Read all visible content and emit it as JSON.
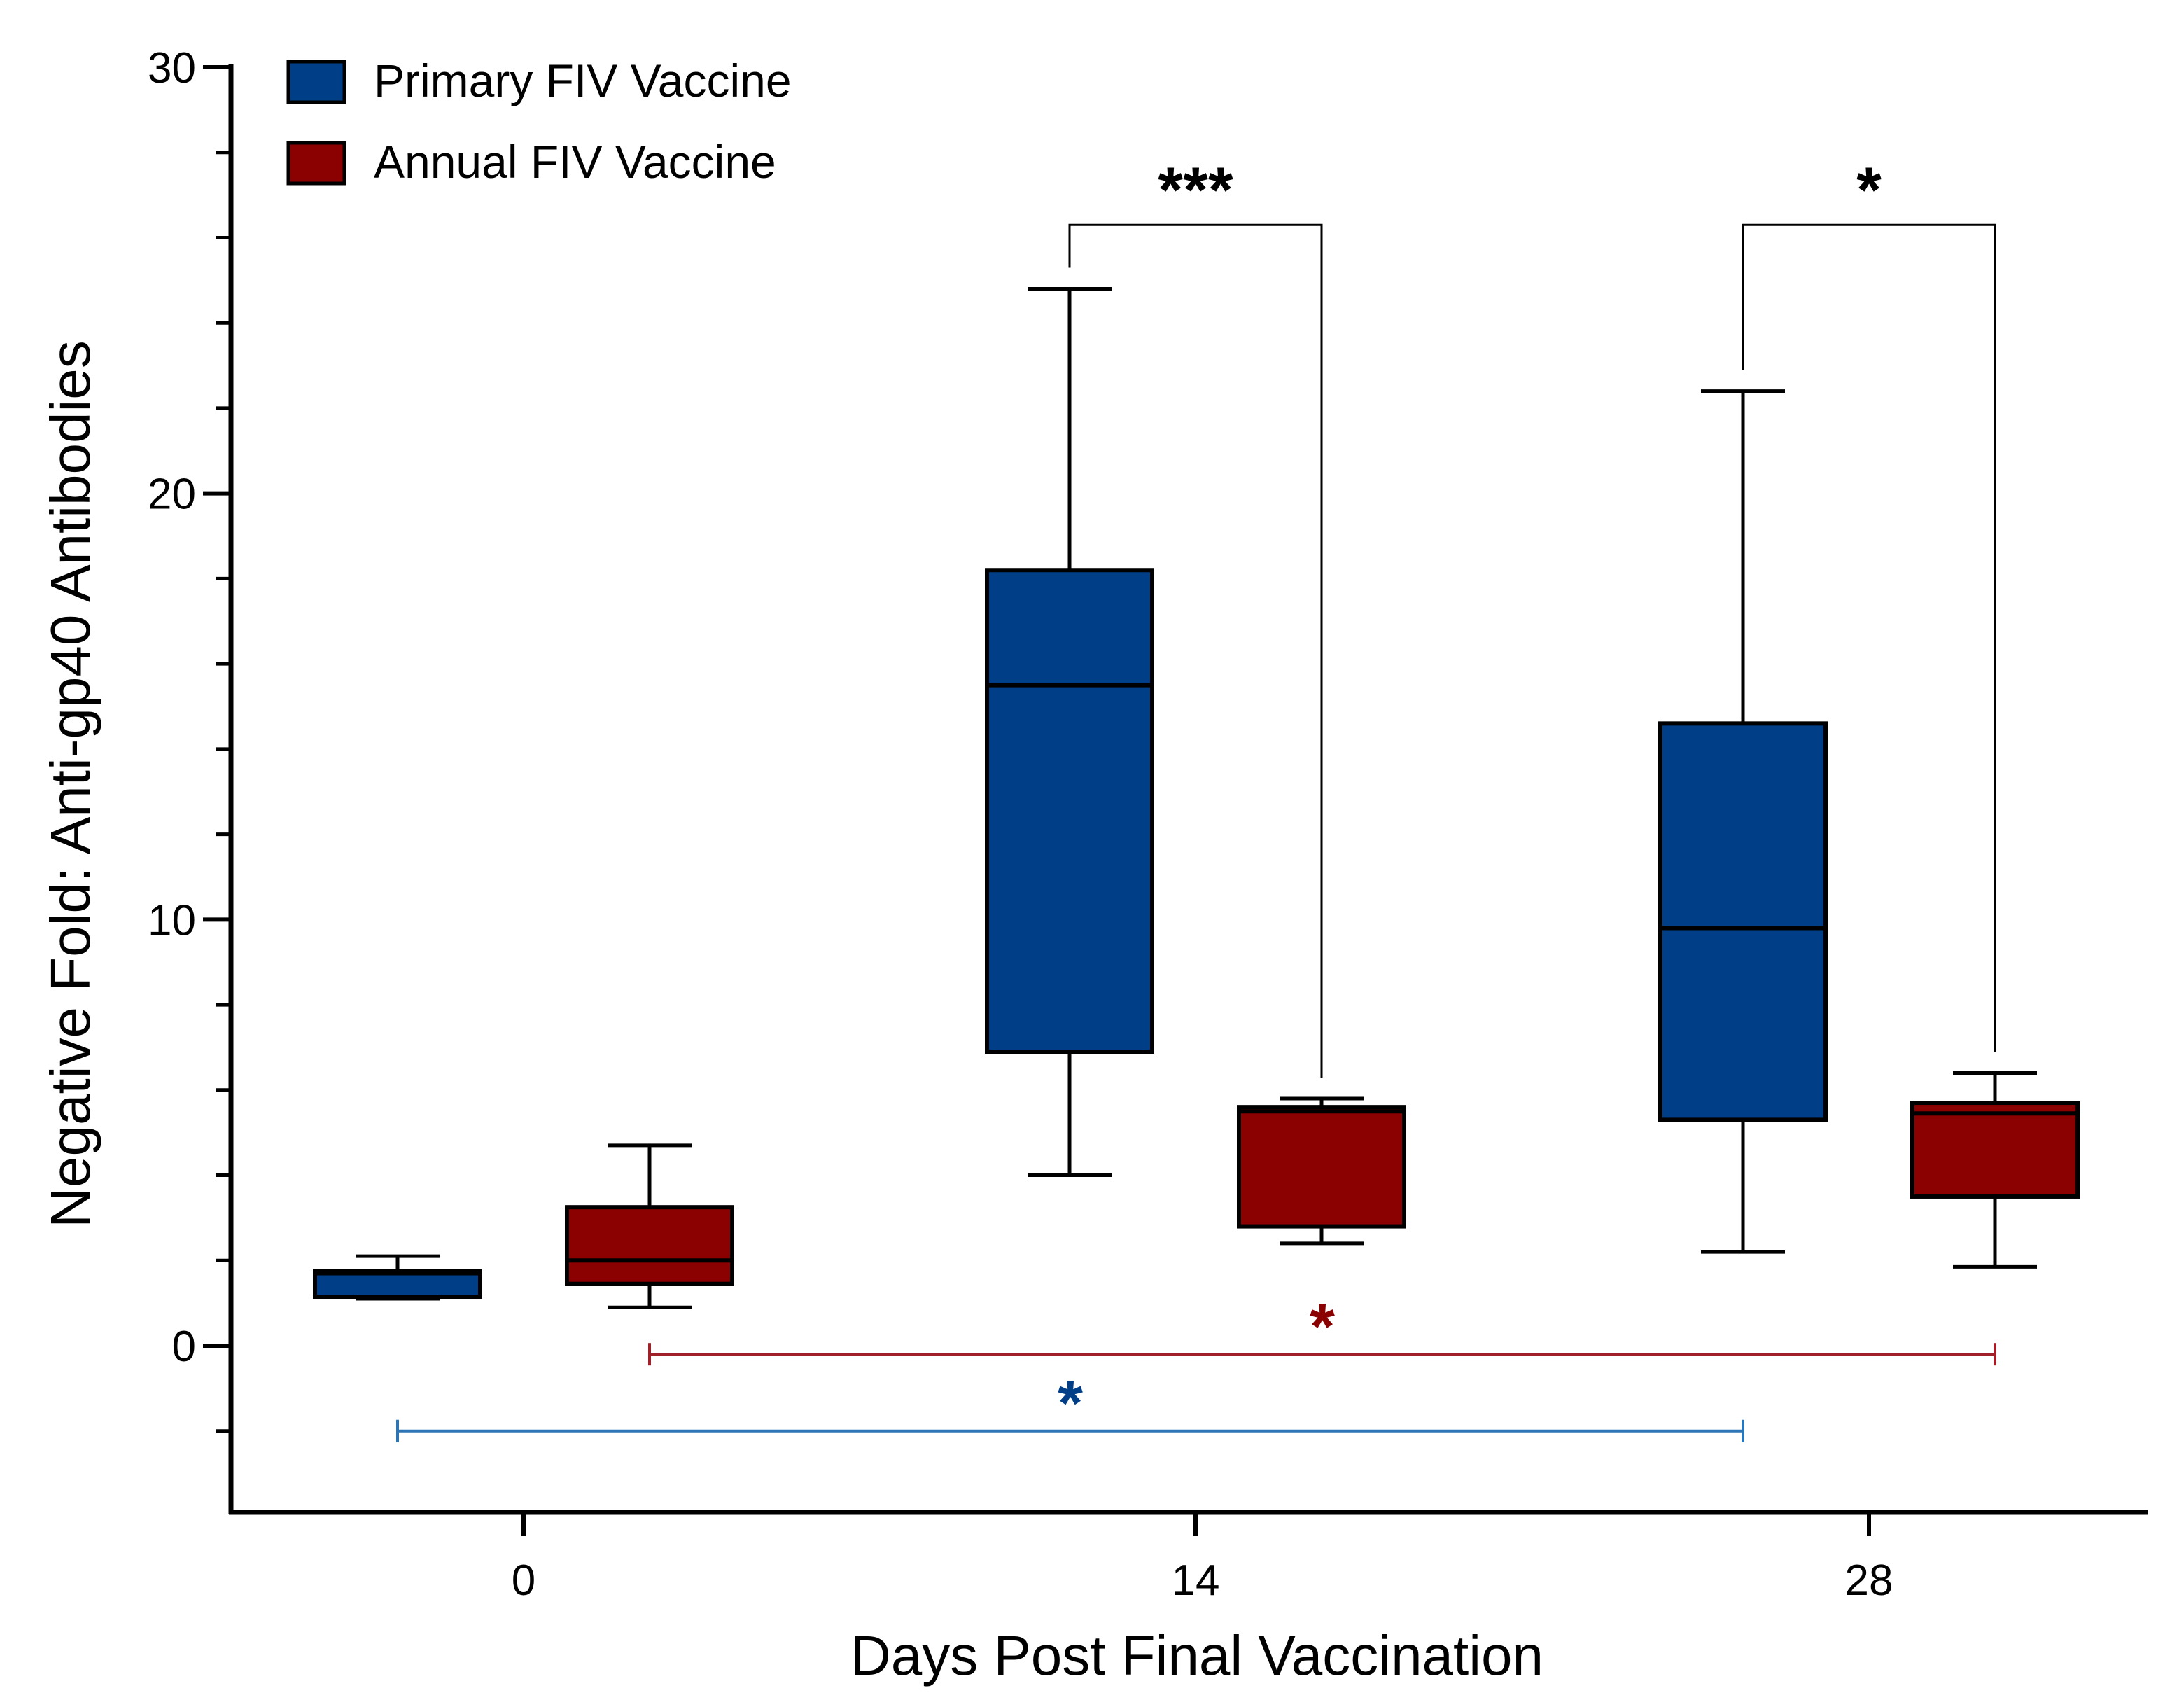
{
  "chart_data": {
    "type": "box",
    "title": "",
    "xlabel": "Days Post Final Vaccination",
    "ylabel": "Negative Fold:  Anti-gp40 Antibodies",
    "categories": [
      "0",
      "14",
      "28"
    ],
    "ylim": [
      -4,
      30
    ],
    "y_ticks": [
      0,
      10,
      20,
      30
    ],
    "y_tick_labels": [
      "0",
      "10",
      "20",
      "30"
    ],
    "legend_position": "top-left",
    "series": [
      {
        "name": "Primary FIV Vaccine",
        "color": "#003F87",
        "boxes": [
          {
            "category": "0",
            "min": 1.1,
            "q1": 1.15,
            "median": 1.7,
            "q3": 1.75,
            "max": 2.1
          },
          {
            "category": "14",
            "min": 4.0,
            "q1": 6.9,
            "median": 15.5,
            "q3": 18.2,
            "max": 24.8
          },
          {
            "category": "28",
            "min": 2.2,
            "q1": 5.3,
            "median": 9.8,
            "q3": 14.6,
            "max": 22.4
          }
        ]
      },
      {
        "name": "Annual FIV Vaccine",
        "color": "#8B0000",
        "boxes": [
          {
            "category": "0",
            "min": 0.9,
            "q1": 1.45,
            "median": 2.0,
            "q3": 3.25,
            "max": 4.7
          },
          {
            "category": "14",
            "min": 2.4,
            "q1": 2.8,
            "median": 5.5,
            "q3": 5.6,
            "max": 5.8
          },
          {
            "category": "28",
            "min": 1.85,
            "q1": 3.5,
            "median": 5.45,
            "q3": 5.7,
            "max": 6.4
          }
        ]
      }
    ],
    "annotations": [
      {
        "type": "bracket",
        "label": "***",
        "between": [
          "Primary FIV Vaccine@14",
          "Annual FIV Vaccine@14"
        ],
        "y": 26.3,
        "color": "#000000"
      },
      {
        "type": "bracket",
        "label": "*",
        "between": [
          "Primary FIV Vaccine@28",
          "Annual FIV Vaccine@28"
        ],
        "y": 26.3,
        "color": "#000000"
      },
      {
        "type": "span",
        "label": "*",
        "between": [
          "Annual FIV Vaccine@0",
          "Annual FIV Vaccine@28"
        ],
        "y": -0.2,
        "color": "#A0202A",
        "star_color": "#8B0000"
      },
      {
        "type": "span",
        "label": "*",
        "between": [
          "Primary FIV Vaccine@0",
          "Primary FIV Vaccine@28"
        ],
        "y": -2.0,
        "color": "#2E75B6",
        "star_color": "#003F87"
      }
    ]
  }
}
